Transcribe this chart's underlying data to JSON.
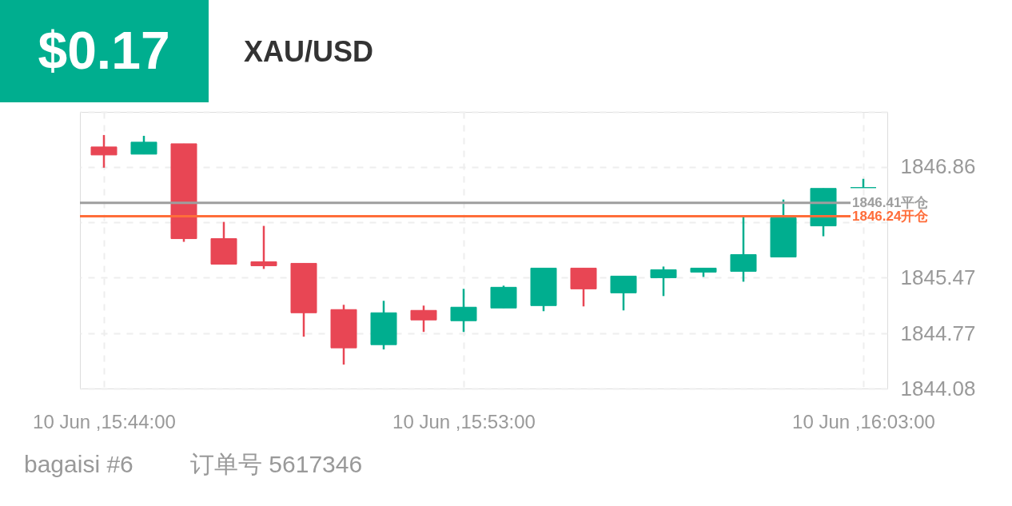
{
  "chart_data": {
    "type": "candlestick",
    "title": "XAU/USD",
    "categories": [
      "10 Jun ,15:44:00",
      null,
      null,
      null,
      null,
      null,
      null,
      null,
      null,
      "10 Jun ,15:53:00",
      null,
      null,
      null,
      null,
      null,
      null,
      null,
      null,
      null,
      "10 Jun ,16:03:00"
    ],
    "ohlc": [
      [
        1847.11,
        1847.26,
        1846.85,
        1847.01
      ],
      [
        1847.02,
        1847.25,
        1847.02,
        1847.17
      ],
      [
        1847.15,
        1847.15,
        1845.92,
        1845.96
      ],
      [
        1845.96,
        1846.17,
        1845.64,
        1845.64
      ],
      [
        1845.67,
        1846.12,
        1845.58,
        1845.62
      ],
      [
        1845.65,
        1845.65,
        1844.73,
        1845.03
      ],
      [
        1845.07,
        1845.13,
        1844.38,
        1844.59
      ],
      [
        1844.63,
        1845.18,
        1844.57,
        1845.03
      ],
      [
        1845.06,
        1845.12,
        1844.79,
        1844.94
      ],
      [
        1844.93,
        1845.33,
        1844.79,
        1845.1
      ],
      [
        1845.09,
        1845.37,
        1845.09,
        1845.35
      ],
      [
        1845.12,
        1845.59,
        1845.05,
        1845.59
      ],
      [
        1845.59,
        1845.59,
        1845.11,
        1845.33
      ],
      [
        1845.28,
        1845.49,
        1845.06,
        1845.49
      ],
      [
        1845.47,
        1845.61,
        1845.24,
        1845.57
      ],
      [
        1845.54,
        1845.59,
        1845.48,
        1845.59
      ],
      [
        1845.55,
        1846.23,
        1845.42,
        1845.76
      ],
      [
        1845.73,
        1846.45,
        1845.73,
        1846.22
      ],
      [
        1846.12,
        1846.59,
        1845.99,
        1846.59
      ],
      [
        1846.6,
        1846.71,
        1846.6,
        1846.6
      ]
    ],
    "colors": [
      "#e84654",
      "#00ae8f",
      "#e84654",
      "#e84654",
      "#e84654",
      "#e84654",
      "#e84654",
      "#00ae8f",
      "#e84654",
      "#00ae8f",
      "#00ae8f",
      "#00ae8f",
      "#e84654",
      "#00ae8f",
      "#00ae8f",
      "#00ae8f",
      "#00ae8f",
      "#00ae8f",
      "#00ae8f",
      "#00ae8f"
    ],
    "ylim": [
      1844.08,
      1847.55
    ],
    "yticks": [
      1844.08,
      1844.77,
      1845.47,
      {
        "value": 1846.165,
        "label": null
      },
      1846.86,
      {
        "value": 1847.55,
        "label": null
      }
    ],
    "grid": true,
    "ref_lines": [
      {
        "axis": "y",
        "value": 1846.41,
        "label": "1846.41平仓",
        "color": "#9e9e9e"
      },
      {
        "axis": "y",
        "value": 1846.24,
        "label": "1846.24开仓",
        "color": "#ff6d3a"
      }
    ],
    "annotations": [
      "$0.17",
      "bagaisi #6",
      "订单号 5617346"
    ]
  }
}
